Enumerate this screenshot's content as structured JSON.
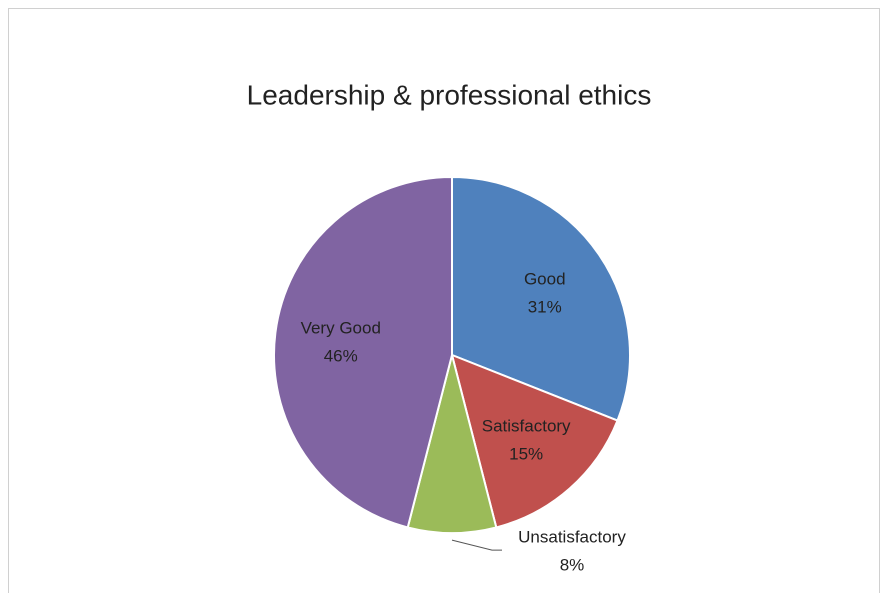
{
  "chart_data": {
    "type": "pie",
    "title": "Leadership & professional ethics",
    "categories": [
      "Good",
      "Satisfactory",
      "Unsatisfactory",
      "Very Good"
    ],
    "values": [
      31,
      15,
      8,
      46
    ],
    "value_labels": [
      "31%",
      "15%",
      "8%",
      "46%"
    ],
    "colors": [
      "#4f81bd",
      "#c0504d",
      "#9bbb59",
      "#8064a2"
    ]
  }
}
